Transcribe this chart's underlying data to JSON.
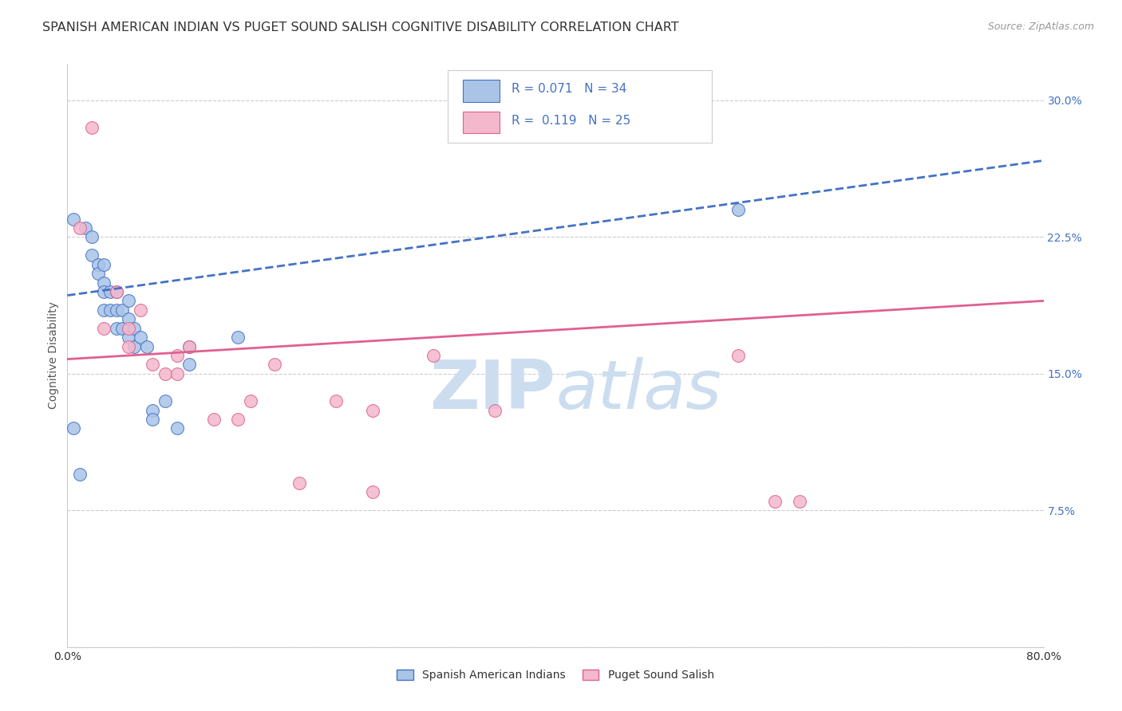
{
  "title": "SPANISH AMERICAN INDIAN VS PUGET SOUND SALISH COGNITIVE DISABILITY CORRELATION CHART",
  "source": "Source: ZipAtlas.com",
  "ylabel": "Cognitive Disability",
  "ytick_values": [
    0.0,
    0.075,
    0.15,
    0.225,
    0.3
  ],
  "ytick_labels": [
    "",
    "7.5%",
    "15.0%",
    "22.5%",
    "30.0%"
  ],
  "xtick_values": [
    0.0,
    0.1,
    0.2,
    0.3,
    0.4,
    0.5,
    0.6,
    0.7,
    0.8
  ],
  "xtick_labels": [
    "0.0%",
    "",
    "",
    "",
    "",
    "",
    "",
    "",
    "80.0%"
  ],
  "xlim": [
    0.0,
    0.8
  ],
  "ylim": [
    0.0,
    0.32
  ],
  "legend_label1": "Spanish American Indians",
  "legend_label2": "Puget Sound Salish",
  "r1": 0.071,
  "n1": 34,
  "r2": 0.119,
  "n2": 25,
  "blue_line_x": [
    0.0,
    0.8
  ],
  "blue_line_y": [
    0.193,
    0.267
  ],
  "pink_line_x": [
    0.0,
    0.8
  ],
  "pink_line_y": [
    0.158,
    0.19
  ],
  "blue_scatter_x": [
    0.005,
    0.015,
    0.02,
    0.02,
    0.025,
    0.025,
    0.03,
    0.03,
    0.03,
    0.03,
    0.035,
    0.035,
    0.04,
    0.04,
    0.04,
    0.045,
    0.045,
    0.05,
    0.05,
    0.05,
    0.055,
    0.055,
    0.06,
    0.065,
    0.07,
    0.07,
    0.08,
    0.09,
    0.1,
    0.1,
    0.14,
    0.01,
    0.005,
    0.55
  ],
  "blue_scatter_y": [
    0.235,
    0.23,
    0.225,
    0.215,
    0.21,
    0.205,
    0.21,
    0.2,
    0.195,
    0.185,
    0.195,
    0.185,
    0.195,
    0.185,
    0.175,
    0.185,
    0.175,
    0.19,
    0.18,
    0.17,
    0.175,
    0.165,
    0.17,
    0.165,
    0.13,
    0.125,
    0.135,
    0.12,
    0.165,
    0.155,
    0.17,
    0.095,
    0.12,
    0.24
  ],
  "pink_scatter_x": [
    0.02,
    0.03,
    0.04,
    0.05,
    0.05,
    0.06,
    0.07,
    0.08,
    0.09,
    0.09,
    0.1,
    0.12,
    0.14,
    0.15,
    0.17,
    0.19,
    0.22,
    0.25,
    0.25,
    0.3,
    0.35,
    0.55,
    0.58,
    0.6,
    0.01
  ],
  "pink_scatter_y": [
    0.285,
    0.175,
    0.195,
    0.175,
    0.165,
    0.185,
    0.155,
    0.15,
    0.16,
    0.15,
    0.165,
    0.125,
    0.125,
    0.135,
    0.155,
    0.09,
    0.135,
    0.085,
    0.13,
    0.16,
    0.13,
    0.16,
    0.08,
    0.08,
    0.23
  ],
  "blue_line_color": "#4472c4",
  "pink_line_color": "#e06090",
  "blue_scatter_facecolor": "#aac4e8",
  "blue_scatter_edgecolor": "#4472c4",
  "pink_scatter_facecolor": "#f4b8cc",
  "pink_scatter_edgecolor": "#e06090",
  "background_color": "#ffffff",
  "grid_color": "#cccccc",
  "watermark_color": "#ccddf0",
  "right_tick_color": "#4472c4",
  "title_color": "#333333",
  "axis_label_color": "#555555",
  "tick_label_color": "#333333",
  "title_fontsize": 11.5,
  "axis_label_fontsize": 10,
  "tick_fontsize": 10,
  "legend_fontsize": 11,
  "source_fontsize": 9
}
